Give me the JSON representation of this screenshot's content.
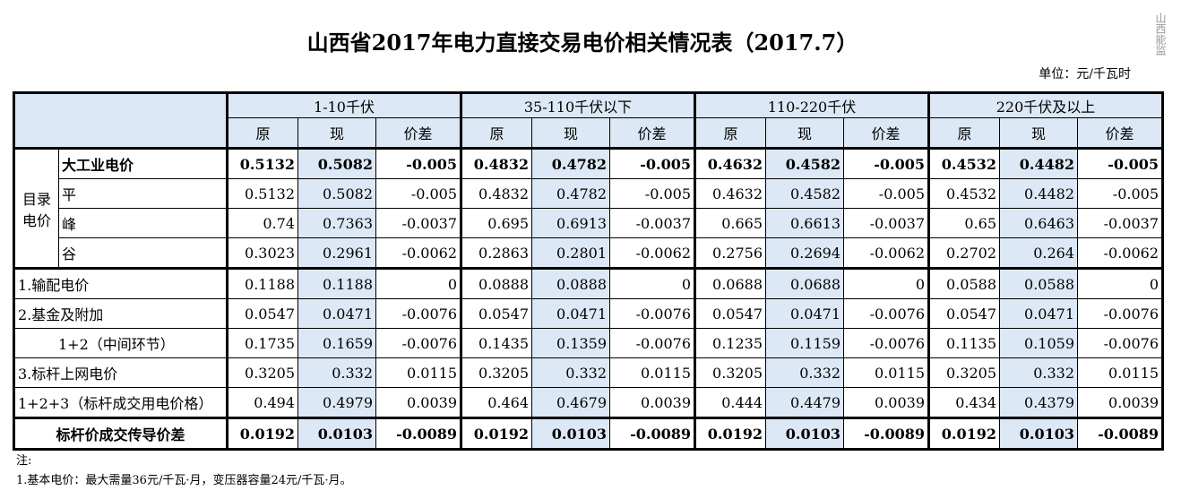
{
  "title": "山西省2017年电力直接交易电价相关情况表（2017.7）",
  "unit": "单位：元/千瓦时",
  "watermark": "山西能监",
  "table": {
    "groups": [
      "1-10千伏",
      "35-110千伏以下",
      "110-220千伏",
      "220千伏及以上"
    ],
    "subheaders": [
      "原",
      "现",
      "价差"
    ],
    "block_label": "目录电价",
    "rows": [
      {
        "label": "大工业电价",
        "values": [
          "0.5132",
          "0.5082",
          "-0.005",
          "0.4832",
          "0.4782",
          "-0.005",
          "0.4632",
          "0.4582",
          "-0.005",
          "0.4532",
          "0.4482",
          "-0.005"
        ]
      },
      {
        "label": "平",
        "values": [
          "0.5132",
          "0.5082",
          "-0.005",
          "0.4832",
          "0.4782",
          "-0.005",
          "0.4632",
          "0.4582",
          "-0.005",
          "0.4532",
          "0.4482",
          "-0.005"
        ]
      },
      {
        "label": "峰",
        "values": [
          "0.74",
          "0.7363",
          "-0.0037",
          "0.695",
          "0.6913",
          "-0.0037",
          "0.665",
          "0.6613",
          "-0.0037",
          "0.65",
          "0.6463",
          "-0.0037"
        ]
      },
      {
        "label": "谷",
        "values": [
          "0.3023",
          "0.2961",
          "-0.0062",
          "0.2863",
          "0.2801",
          "-0.0062",
          "0.2756",
          "0.2694",
          "-0.0062",
          "0.2702",
          "0.264",
          "-0.0062"
        ]
      },
      {
        "label": "1.输配电价",
        "values": [
          "0.1188",
          "0.1188",
          "0",
          "0.0888",
          "0.0888",
          "0",
          "0.0688",
          "0.0688",
          "0",
          "0.0588",
          "0.0588",
          "0"
        ]
      },
      {
        "label": "2.基金及附加",
        "values": [
          "0.0547",
          "0.0471",
          "-0.0076",
          "0.0547",
          "0.0471",
          "-0.0076",
          "0.0547",
          "0.0471",
          "-0.0076",
          "0.0547",
          "0.0471",
          "-0.0076"
        ]
      },
      {
        "label": "1+2（中间环节）",
        "values": [
          "0.1735",
          "0.1659",
          "-0.0076",
          "0.1435",
          "0.1359",
          "-0.0076",
          "0.1235",
          "0.1159",
          "-0.0076",
          "0.1135",
          "0.1059",
          "-0.0076"
        ]
      },
      {
        "label": "3.标杆上网电价",
        "values": [
          "0.3205",
          "0.332",
          "0.0115",
          "0.3205",
          "0.332",
          "0.0115",
          "0.3205",
          "0.332",
          "0.0115",
          "0.3205",
          "0.332",
          "0.0115"
        ]
      },
      {
        "label": "1+2+3（标杆成交用电价格）",
        "values": [
          "0.494",
          "0.4979",
          "0.0039",
          "0.464",
          "0.4679",
          "0.0039",
          "0.444",
          "0.4479",
          "0.0039",
          "0.434",
          "0.4379",
          "0.0039"
        ]
      },
      {
        "label": "标杆价成交传导价差",
        "values": [
          "0.0192",
          "0.0103",
          "-0.0089",
          "0.0192",
          "0.0103",
          "-0.0089",
          "0.0192",
          "0.0103",
          "-0.0089",
          "0.0192",
          "0.0103",
          "-0.0089"
        ]
      }
    ]
  },
  "notes": [
    "注:",
    "1.基本电价：最大需量36元/千瓦·月，变压器容量24元/千瓦·月。"
  ]
}
